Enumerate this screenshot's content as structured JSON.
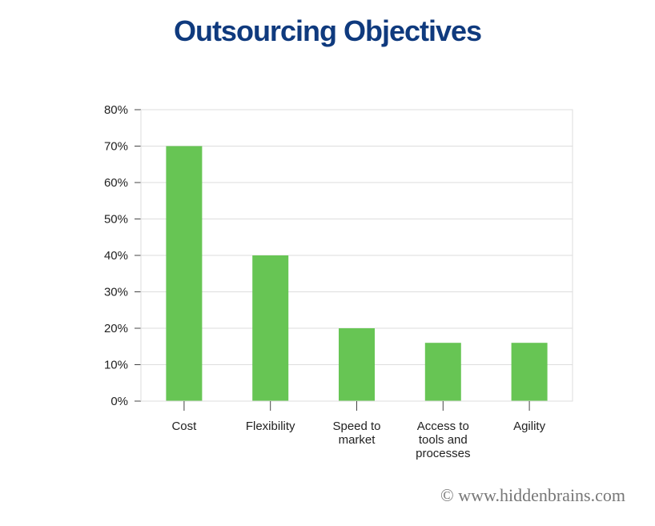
{
  "title": "Outsourcing Objectives",
  "watermark": "© www.hiddenbrains.com",
  "colors": {
    "bar": "#67c554",
    "title": "#0f3a7e",
    "grid": "#dddddd",
    "axis": "#444444"
  },
  "chart_data": {
    "type": "bar",
    "title": "Outsourcing Objectives",
    "xlabel": "",
    "ylabel": "",
    "categories": [
      "Cost",
      "Flexibility",
      "Speed to market",
      "Access to tools and processes",
      "Agility"
    ],
    "category_lines": [
      [
        "Cost"
      ],
      [
        "Flexibility"
      ],
      [
        "Speed to",
        "market"
      ],
      [
        "Access to",
        "tools and",
        "processes"
      ],
      [
        "Agility"
      ]
    ],
    "values": [
      70,
      40,
      20,
      16,
      16
    ],
    "ylim": [
      0,
      80
    ],
    "yticks": [
      0,
      10,
      20,
      30,
      40,
      50,
      60,
      70,
      80
    ],
    "ytick_labels": [
      "0%",
      "10%",
      "20%",
      "30%",
      "40%",
      "50%",
      "60%",
      "70%",
      "80%"
    ],
    "grid": true,
    "legend": "none"
  }
}
